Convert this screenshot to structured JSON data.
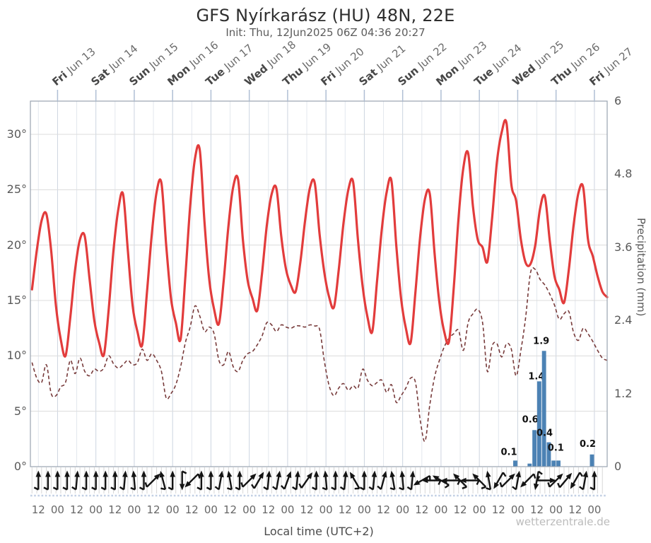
{
  "title": "GFS Nyírkarász (HU) 48N, 22E",
  "subtitle": "Init: Thu, 12Jun2025 06Z 04:36 20:27",
  "watermark": "wetterzentrale.de",
  "colors": {
    "temperature": "#e23c3c",
    "dewpoint": "#773a3a",
    "precipitation": "#4c82b4",
    "grid_day": "#ccd4e0",
    "grid_half_day": "#e3e7ee",
    "grid_horizontal": "#dcdcdc",
    "frame": "#99a3b0",
    "top_tick": "#afbed4",
    "wind_comb": "#d6d6d6",
    "dotted_baseline": "#c3d0e4",
    "wind_arrow": "#141414",
    "bar_label": "#111111"
  },
  "x_axis": {
    "label": "Local time (UTC+2)",
    "hour_label_12": "12",
    "hour_label_00": "00",
    "day_labels": [
      {
        "dow": "Fri",
        "date": "Jun 13"
      },
      {
        "dow": "Sat",
        "date": "Jun 14"
      },
      {
        "dow": "Sun",
        "date": "Jun 15"
      },
      {
        "dow": "Mon",
        "date": "Jun 16"
      },
      {
        "dow": "Tue",
        "date": "Jun 17"
      },
      {
        "dow": "Wed",
        "date": "Jun 18"
      },
      {
        "dow": "Thu",
        "date": "Jun 19"
      },
      {
        "dow": "Fri",
        "date": "Jun 20"
      },
      {
        "dow": "Sat",
        "date": "Jun 21"
      },
      {
        "dow": "Sun",
        "date": "Jun 22"
      },
      {
        "dow": "Mon",
        "date": "Jun 23"
      },
      {
        "dow": "Tue",
        "date": "Jun 24"
      },
      {
        "dow": "Wed",
        "date": "Jun 25"
      },
      {
        "dow": "Thu",
        "date": "Jun 26"
      },
      {
        "dow": "Fri",
        "date": "Jun 27"
      }
    ]
  },
  "y_left": {
    "ticks": [
      {
        "label": "30°",
        "t": 30
      },
      {
        "label": "25°",
        "t": 25
      },
      {
        "label": "20°",
        "t": 20
      },
      {
        "label": "15°",
        "t": 15
      },
      {
        "label": "10°",
        "t": 10
      },
      {
        "label": "5°",
        "t": 5
      },
      {
        "label": "0°",
        "t": 0
      }
    ]
  },
  "y_right": {
    "label": "Precipitation (mm)",
    "ticks": [
      {
        "label": "6",
        "v": 6
      },
      {
        "label": "4.8",
        "v": 4.8
      },
      {
        "label": "3.6",
        "v": 3.6
      },
      {
        "label": "2.4",
        "v": 2.4
      },
      {
        "label": "1.2",
        "v": 1.2
      },
      {
        "label": "0",
        "v": 0
      }
    ]
  },
  "chart_data": {
    "type": "line",
    "title": "GFS Nyírkarász (HU) 48N, 22E",
    "time": {
      "start": "Thu Jun 12 06:00 local",
      "end": "Fri Jun 27 08:00 local",
      "sample_step_hours": 3,
      "first_sample_hour_offset": 2
    },
    "axes": {
      "temp_range_c": [
        0,
        33
      ],
      "precip_range_mm": [
        0,
        6
      ],
      "hours_range": [
        1,
        362
      ],
      "first_midnight_hour": 18,
      "day_count": 15,
      "grid": "on",
      "legend": "none"
    },
    "series": [
      {
        "name": "2m temperature (°C)",
        "style": "solid",
        "values": [
          16.0,
          19.5,
          22.2,
          22.8,
          19.5,
          14.5,
          11.5,
          10.0,
          13.5,
          17.8,
          20.5,
          20.8,
          17.0,
          13.2,
          11.2,
          10.1,
          14.2,
          19.5,
          23.2,
          24.6,
          19.5,
          14.5,
          12.2,
          11.0,
          15.8,
          21.0,
          24.8,
          25.6,
          20.0,
          15.2,
          13.0,
          11.5,
          17.2,
          23.5,
          27.8,
          28.6,
          22.0,
          16.8,
          14.2,
          12.9,
          16.8,
          21.8,
          25.3,
          25.9,
          20.5,
          16.8,
          15.2,
          14.1,
          17.5,
          21.8,
          24.6,
          25.1,
          20.8,
          17.8,
          16.4,
          15.8,
          18.5,
          22.3,
          25.2,
          25.6,
          21.0,
          17.5,
          15.3,
          14.4,
          17.8,
          22.0,
          25.0,
          25.7,
          20.5,
          16.2,
          13.5,
          12.2,
          16.8,
          21.5,
          24.8,
          25.8,
          20.0,
          15.2,
          12.5,
          11.2,
          15.8,
          20.8,
          24.2,
          24.6,
          19.2,
          14.8,
          12.2,
          11.3,
          16.2,
          22.5,
          27.0,
          28.3,
          23.5,
          20.5,
          19.8,
          18.5,
          22.5,
          27.5,
          30.2,
          31.0,
          25.5,
          24.0,
          20.5,
          18.4,
          18.3,
          20.0,
          23.3,
          24.4,
          20.5,
          17.2,
          16.0,
          14.8,
          17.8,
          21.8,
          24.7,
          25.2,
          20.5,
          19.0,
          17.2,
          15.8,
          15.3
        ]
      },
      {
        "name": "dew point (°C)",
        "style": "dashed",
        "values": [
          9.4,
          8.0,
          7.6,
          9.2,
          6.6,
          6.4,
          7.2,
          7.6,
          9.6,
          8.4,
          9.8,
          8.6,
          8.2,
          8.8,
          8.6,
          8.9,
          10.0,
          9.3,
          8.9,
          9.2,
          9.6,
          9.2,
          9.4,
          10.6,
          9.6,
          10.2,
          9.6,
          8.6,
          6.2,
          6.6,
          7.4,
          9.0,
          11.2,
          12.6,
          14.5,
          13.6,
          12.2,
          12.6,
          12.0,
          9.6,
          9.2,
          10.4,
          9.0,
          8.6,
          9.6,
          10.2,
          10.4,
          11.0,
          11.8,
          13.0,
          12.8,
          12.2,
          12.8,
          12.6,
          12.5,
          12.7,
          12.7,
          12.6,
          12.8,
          12.7,
          12.4,
          9.5,
          7.3,
          6.4,
          7.1,
          7.5,
          6.9,
          7.3,
          7.1,
          8.8,
          7.8,
          7.3,
          7.6,
          7.8,
          6.7,
          7.4,
          5.8,
          6.4,
          7.1,
          8.0,
          7.6,
          4.2,
          2.3,
          5.6,
          8.1,
          9.6,
          10.8,
          11.6,
          12.0,
          12.3,
          10.5,
          13.0,
          13.8,
          14.2,
          13.0,
          8.6,
          10.9,
          11.1,
          9.9,
          11.1,
          10.6,
          8.2,
          10.5,
          13.5,
          17.5,
          17.8,
          16.9,
          16.4,
          15.6,
          14.6,
          13.3,
          13.8,
          14.0,
          12.1,
          11.4,
          12.5,
          12.0,
          11.3,
          10.5,
          9.8,
          9.6
        ]
      }
    ],
    "precipitation_bars": {
      "bin_hours": 3,
      "bars": [
        {
          "hour": 303,
          "mm": 0.1,
          "label": "0.1",
          "dx": -9,
          "dy": -8
        },
        {
          "hour": 312,
          "mm": 0.05
        },
        {
          "hour": 315,
          "mm": 0.6,
          "label": "0.6",
          "dx": -6,
          "dy": -11
        },
        {
          "hour": 318,
          "mm": 1.4,
          "label": "1.4",
          "dx": -4,
          "dy": -3
        },
        {
          "hour": 321,
          "mm": 1.9,
          "label": "1.9",
          "dx": -4,
          "dy": -10
        },
        {
          "hour": 324,
          "mm": 0.4,
          "label": "0.4",
          "dx": -6,
          "dy": -9
        },
        {
          "hour": 327,
          "mm": 0.1,
          "label": "0.1",
          "dx": 3,
          "dy": -14
        },
        {
          "hour": 330,
          "mm": 0.1
        },
        {
          "hour": 351,
          "mm": 0.2,
          "label": "0.2",
          "dx": -6,
          "dy": -11
        }
      ]
    },
    "wind": {
      "start_hour": 6,
      "step_hours": 6,
      "pointing_deg_note": "arrow pointing direction, 0=up 180=down (wind from north)",
      "pointing_deg": [
        180,
        180,
        180,
        180,
        185,
        180,
        180,
        180,
        180,
        185,
        175,
        180,
        225,
        165,
        180,
        0,
        45,
        180,
        180,
        190,
        170,
        180,
        225,
        210,
        185,
        190,
        200,
        185,
        215,
        180,
        175,
        180,
        185,
        150,
        180,
        185,
        195,
        170,
        175,
        185,
        60,
        90,
        120,
        90,
        135,
        90,
        135,
        170,
        30,
        225,
        190,
        45,
        10,
        270,
        225,
        220,
        30,
        190,
        180
      ]
    }
  }
}
